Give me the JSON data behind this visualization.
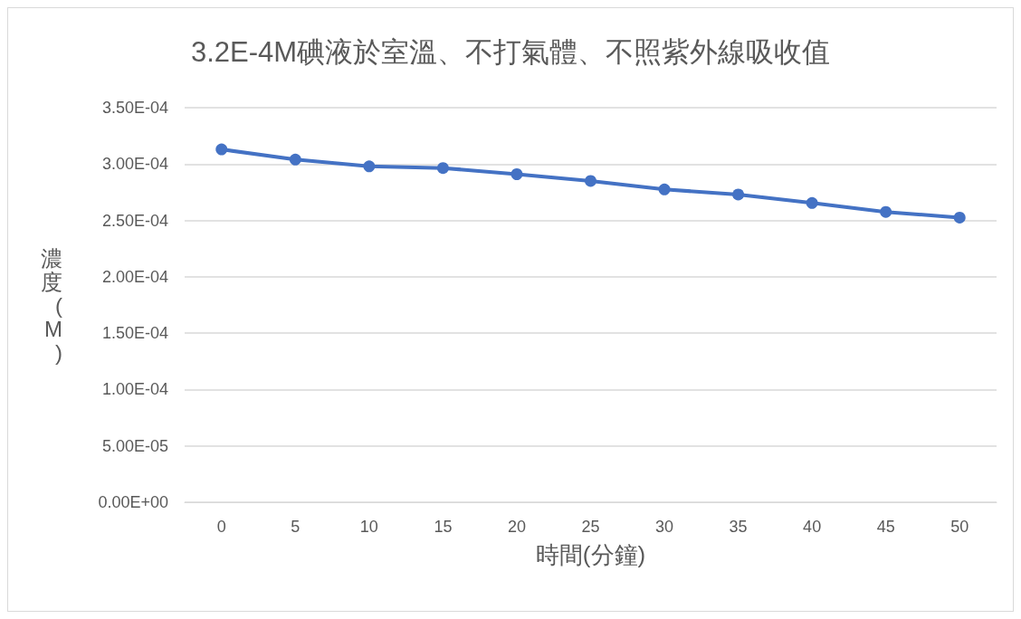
{
  "chart_data": {
    "type": "line",
    "title": "3.2E-4M碘液於室溫、不打氣體、不照紫外線吸收值",
    "xlabel": "時間(分鐘)",
    "ylabel": "濃度(M)",
    "categories": [
      "0",
      "5",
      "10",
      "15",
      "20",
      "25",
      "30",
      "35",
      "40",
      "45",
      "50"
    ],
    "series": [
      {
        "color": "#4472c4",
        "values": [
          0.000313,
          0.000304,
          0.000298,
          0.0002965,
          0.000291,
          0.000285,
          0.0002775,
          0.000273,
          0.0002655,
          0.0002575,
          0.0002525
        ]
      }
    ],
    "ylim": [
      0,
      0.00035
    ],
    "yticks": [
      {
        "value": 0,
        "label": "0.00E+00"
      },
      {
        "value": 5e-05,
        "label": "5.00E-05"
      },
      {
        "value": 0.0001,
        "label": "1.00E-04"
      },
      {
        "value": 0.00015,
        "label": "1.50E-04"
      },
      {
        "value": 0.0002,
        "label": "2.00E-04"
      },
      {
        "value": 0.00025,
        "label": "2.50E-04"
      },
      {
        "value": 0.0003,
        "label": "3.00E-04"
      },
      {
        "value": 0.00035,
        "label": "3.50E-04"
      }
    ],
    "grid": "y",
    "marker": "circle",
    "line_style": "solid"
  }
}
